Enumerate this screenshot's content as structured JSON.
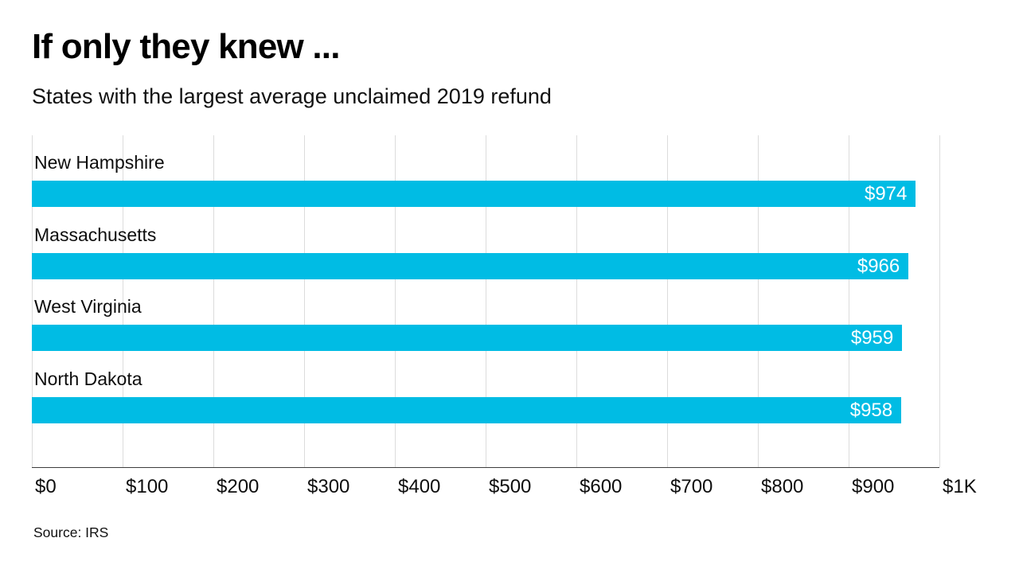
{
  "header": {
    "title": "If only they knew ...",
    "subtitle": "States with the largest average unclaimed 2019 refund"
  },
  "footer": {
    "source": "Source: IRS"
  },
  "colors": {
    "bar_fill": "#00bce4",
    "gridline": "#dcdcdc",
    "axis_line": "#3d3d3d",
    "value_label_text": "#ffffff",
    "text": "#000000"
  },
  "chart_data": {
    "type": "bar",
    "orientation": "horizontal",
    "title": "If only they knew ...",
    "subtitle": "States with the largest average unclaimed 2019 refund",
    "categories": [
      "New Hampshire",
      "Massachusetts",
      "West Virginia",
      "North Dakota"
    ],
    "values": [
      974,
      966,
      959,
      958
    ],
    "value_labels": [
      "$974",
      "$966",
      "$959",
      "$958"
    ],
    "xlabel": "",
    "ylabel": "",
    "xlim": [
      0,
      1000
    ],
    "x_ticks": [
      0,
      100,
      200,
      300,
      400,
      500,
      600,
      700,
      800,
      900,
      1000
    ],
    "x_tick_labels": [
      "$0",
      "$100",
      "$200",
      "$300",
      "$400",
      "$500",
      "$600",
      "$700",
      "$800",
      "$900",
      "$1K"
    ],
    "grid": true,
    "legend": false,
    "source": "Source: IRS"
  }
}
